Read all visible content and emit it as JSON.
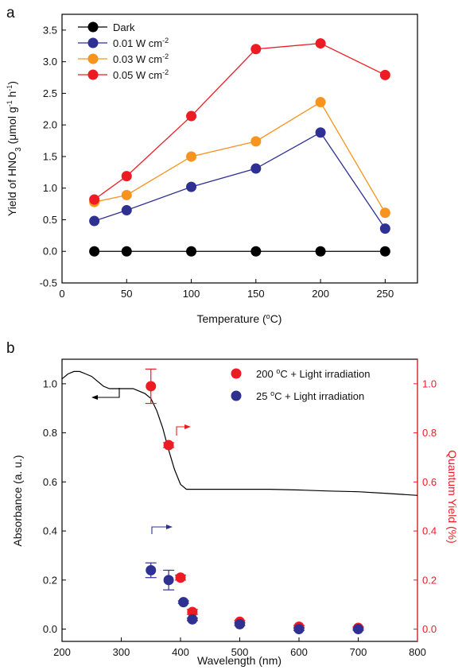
{
  "chart_data": [
    {
      "type": "line",
      "panel_label": "a",
      "xlabel": "Temperature (°C)",
      "ylabel": "Yield of HNO3 (μmol g-1 h-1)",
      "xlim": [
        0,
        275
      ],
      "ylim": [
        -0.5,
        3.75
      ],
      "xticks": [
        0,
        50,
        100,
        150,
        200,
        250
      ],
      "yticks": [
        -0.5,
        0.0,
        0.5,
        1.0,
        1.5,
        2.0,
        2.5,
        3.0,
        3.5
      ],
      "legend_position": "top-left",
      "x": [
        25,
        50,
        100,
        150,
        200,
        250
      ],
      "series": [
        {
          "name": "Dark",
          "color": "#000000",
          "values": [
            0,
            0,
            0,
            0,
            0,
            0
          ]
        },
        {
          "name": "0.01 W cm-2",
          "color": "#2e3192",
          "values": [
            0.48,
            0.65,
            1.02,
            1.31,
            1.88,
            0.36
          ]
        },
        {
          "name": "0.03 W cm-2",
          "color": "#f7941d",
          "values": [
            0.78,
            0.89,
            1.5,
            1.74,
            2.36,
            0.61
          ]
        },
        {
          "name": "0.05 W cm-2",
          "color": "#ed1c24",
          "values": [
            0.82,
            1.19,
            2.14,
            3.2,
            3.29,
            2.79
          ]
        }
      ]
    },
    {
      "type": "scatter",
      "panel_label": "b",
      "xlabel": "Wavelength (nm)",
      "ylabel": "Absorbance (a. u.)",
      "y2label": "Quantum Yield (%)",
      "xlim": [
        200,
        800
      ],
      "ylim": [
        -0.05,
        1.1
      ],
      "y2lim": [
        -0.05,
        1.1
      ],
      "xticks": [
        200,
        300,
        400,
        500,
        600,
        700,
        800
      ],
      "yticks": [
        0.0,
        0.2,
        0.4,
        0.6,
        0.8,
        1.0
      ],
      "y2ticks": [
        0.0,
        0.2,
        0.4,
        0.6,
        0.8,
        1.0
      ],
      "legend_position": "top-right",
      "absorbance": {
        "x": [
          200,
          210,
          220,
          230,
          240,
          250,
          260,
          270,
          280,
          290,
          300,
          310,
          320,
          330,
          340,
          350,
          360,
          370,
          380,
          390,
          400,
          410,
          420,
          450,
          500,
          550,
          600,
          650,
          700,
          750,
          800
        ],
        "y": [
          1.02,
          1.04,
          1.05,
          1.05,
          1.04,
          1.03,
          1.01,
          0.99,
          0.98,
          0.98,
          0.98,
          0.98,
          0.98,
          0.97,
          0.96,
          0.94,
          0.89,
          0.82,
          0.73,
          0.65,
          0.59,
          0.57,
          0.57,
          0.57,
          0.57,
          0.57,
          0.567,
          0.563,
          0.56,
          0.553,
          0.545
        ]
      },
      "series": [
        {
          "name": "200 °C + Light irradiation",
          "color": "#ed1c24",
          "x": [
            350,
            380,
            400,
            420,
            500,
            600,
            700
          ],
          "values": [
            0.99,
            0.75,
            0.21,
            0.07,
            0.03,
            0.01,
            0.005
          ],
          "errors": [
            0.07,
            0.01,
            0.01,
            0.01,
            0.005,
            0.005,
            0.005
          ]
        },
        {
          "name": "25 °C + Light irradiation",
          "color": "#2e3192",
          "x": [
            350,
            380,
            405,
            420,
            500,
            600,
            700
          ],
          "values": [
            0.24,
            0.2,
            0.11,
            0.04,
            0.02,
            0.0,
            0.0
          ],
          "errors": [
            0.03,
            0.04,
            0.005,
            0.005,
            0.005,
            0.005,
            0.005
          ]
        }
      ]
    }
  ]
}
